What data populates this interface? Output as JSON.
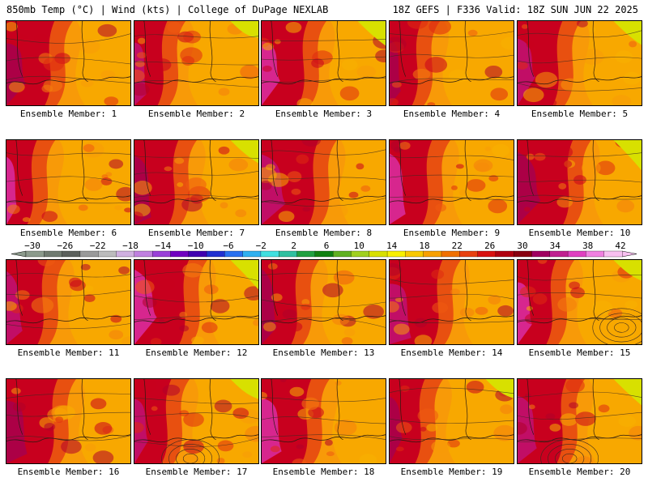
{
  "header": {
    "left": "850mb Temp (°C) | Wind (kts) | College of DuPage NEXLAB",
    "right": "18Z GEFS | F336 Valid: 18Z SUN JUN 22 2025"
  },
  "members": [
    {
      "label": "Ensemble Member: 1"
    },
    {
      "label": "Ensemble Member: 2"
    },
    {
      "label": "Ensemble Member: 3"
    },
    {
      "label": "Ensemble Member: 4"
    },
    {
      "label": "Ensemble Member: 5"
    },
    {
      "label": "Ensemble Member: 6"
    },
    {
      "label": "Ensemble Member: 7"
    },
    {
      "label": "Ensemble Member: 8"
    },
    {
      "label": "Ensemble Member: 9"
    },
    {
      "label": "Ensemble Member: 10"
    },
    {
      "label": "Ensemble Member: 11"
    },
    {
      "label": "Ensemble Member: 12"
    },
    {
      "label": "Ensemble Member: 13"
    },
    {
      "label": "Ensemble Member: 14"
    },
    {
      "label": "Ensemble Member: 15"
    },
    {
      "label": "Ensemble Member: 16"
    },
    {
      "label": "Ensemble Member: 17"
    },
    {
      "label": "Ensemble Member: 18"
    },
    {
      "label": "Ensemble Member: 19"
    },
    {
      "label": "Ensemble Member: 20"
    }
  ],
  "colorbar": {
    "ticks": [
      "−30",
      "−26",
      "−22",
      "−18",
      "−14",
      "−10",
      "−6",
      "−2",
      "2",
      "6",
      "10",
      "14",
      "18",
      "22",
      "26",
      "30",
      "34",
      "38",
      "42"
    ],
    "colors": [
      "#8c9a8c",
      "#707a70",
      "#5c605c",
      "#9a9a9a",
      "#bcbcbc",
      "#d0b0e0",
      "#c080e0",
      "#9a40d8",
      "#7000c0",
      "#4000b0",
      "#2030d0",
      "#2870f0",
      "#30b0f0",
      "#40e0e0",
      "#30c0a0",
      "#20a040",
      "#108010",
      "#60b020",
      "#a0d020",
      "#d8e000",
      "#f8f000",
      "#f8c800",
      "#f8a000",
      "#f07000",
      "#e84010",
      "#d81010",
      "#b00010",
      "#880010",
      "#a00060",
      "#c02090",
      "#e040c0",
      "#f080e0",
      "#f8c0f0"
    ]
  }
}
